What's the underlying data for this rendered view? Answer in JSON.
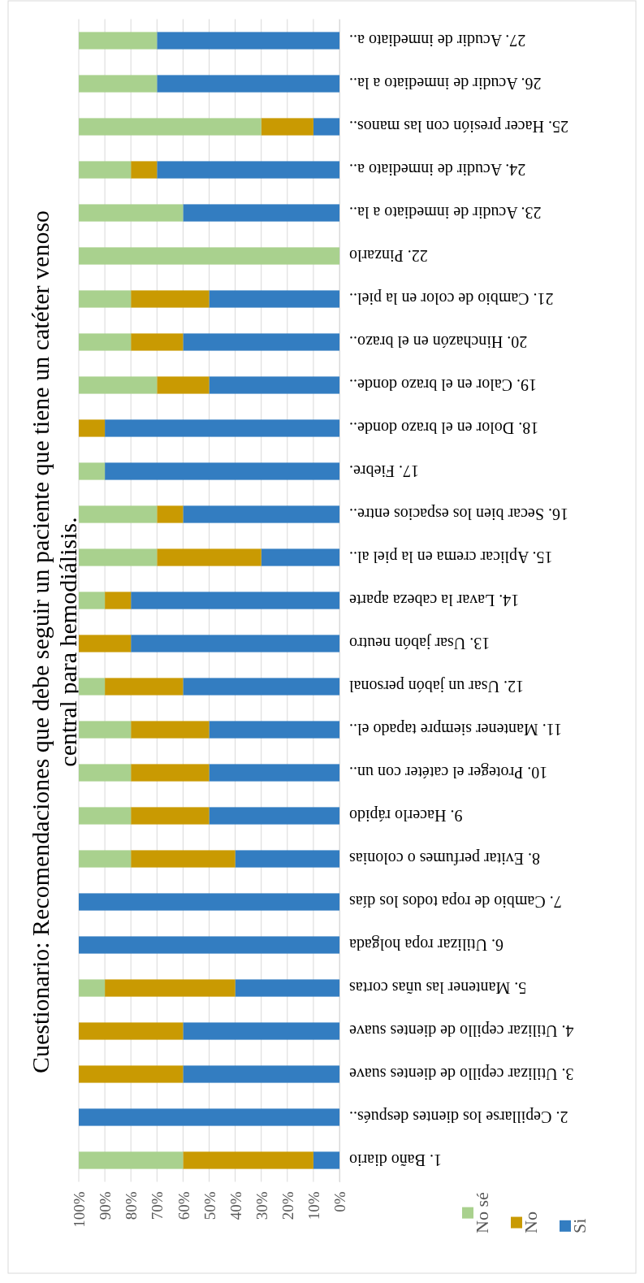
{
  "chart_data": {
    "type": "bar",
    "stacked": true,
    "orientation": "horizontal",
    "title": "Cuestionario: Recomendaciones que debe seguir un paciente que tiene un catéter venoso central para hemodiálisis.",
    "categories": [
      "27. Acudir de inmediato a..",
      "26. Acudir de inmediato a la..",
      "25. Hacer presión con las manos..",
      "24. Acudir de inmediato a..",
      "23. Acudir de inmediato a la..",
      "22. Pinzarlo",
      "21. Cambio de color en la piel..",
      "20. Hinchazón en el brazo..",
      "19. Calor en el brazo donde..",
      "18. Dolor en el brazo donde..",
      "17. Fiebre.",
      "16. Secar bien los espacios entre..",
      "15. Aplicar crema en la piel al..",
      "14. Lavar la cabeza aparte",
      "13. Usar jabón neutro",
      "12. Usar un jabón personal",
      "11. Mantener siempre tapado el..",
      "10. Proteger el catéter con un..",
      "9. Hacerlo rápido",
      "8. Evitar perfumes o colonias",
      "7. Cambio de ropa todos los días",
      "6. Utilizar ropa holgada",
      "5. Mantener las uñas cortas",
      "4. Utilizar cepillo de dientes suave",
      "3. Utilizar cepillo de dientes suave",
      "2. Cepillarse los dientes después..",
      "1. Baño diario"
    ],
    "series": [
      {
        "name": "Si",
        "color": "#337dc1",
        "values": [
          70,
          70,
          10,
          70,
          60,
          0,
          50,
          60,
          50,
          90,
          90,
          60,
          30,
          80,
          80,
          60,
          50,
          50,
          50,
          40,
          100,
          100,
          40,
          60,
          60,
          100,
          10
        ]
      },
      {
        "name": "No",
        "color": "#c99a02",
        "values": [
          0,
          0,
          20,
          10,
          0,
          0,
          30,
          20,
          20,
          10,
          0,
          10,
          40,
          10,
          20,
          30,
          30,
          30,
          30,
          40,
          0,
          0,
          50,
          40,
          40,
          0,
          50
        ]
      },
      {
        "name": "No sé",
        "color": "#a9d18e",
        "values": [
          30,
          30,
          70,
          20,
          40,
          100,
          20,
          20,
          30,
          0,
          10,
          30,
          30,
          10,
          0,
          10,
          20,
          20,
          20,
          20,
          0,
          0,
          10,
          0,
          0,
          0,
          40
        ]
      }
    ],
    "xlim": [
      100,
      0
    ],
    "xticks": [
      {
        "value": 100,
        "label": "100%"
      },
      {
        "value": 90,
        "label": "90%"
      },
      {
        "value": 80,
        "label": "80%"
      },
      {
        "value": 70,
        "label": "70%"
      },
      {
        "value": 60,
        "label": "60%"
      },
      {
        "value": 50,
        "label": "50%"
      },
      {
        "value": 40,
        "label": "40%"
      },
      {
        "value": 30,
        "label": "30%"
      },
      {
        "value": 20,
        "label": "20%"
      },
      {
        "value": 10,
        "label": "10%"
      },
      {
        "value": 0,
        "label": "0%"
      }
    ],
    "grid": "x",
    "legend": "bottom right"
  }
}
